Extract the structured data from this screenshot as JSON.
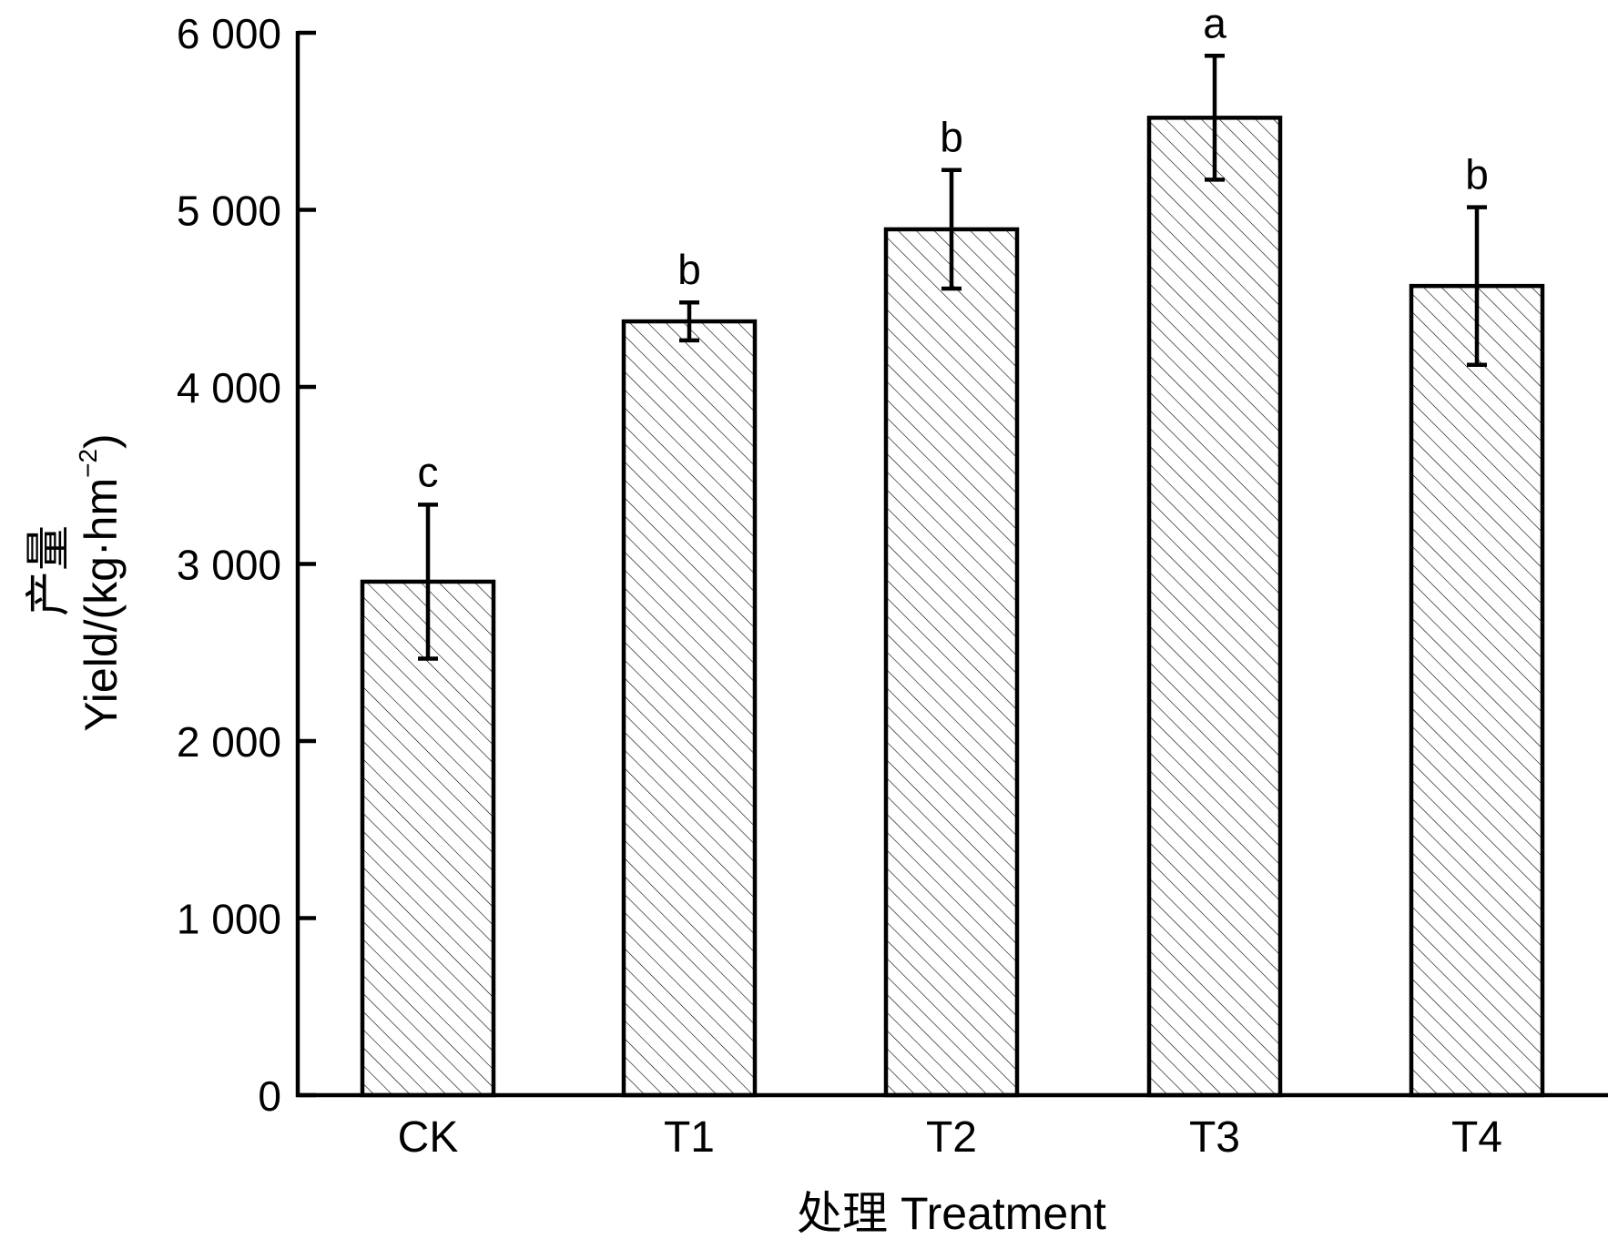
{
  "chart_data": {
    "type": "bar",
    "title": "",
    "xlabel": "处理 Treatment",
    "ylabel": "产量 Yield/(kg·hm⁻²)",
    "ylabel_parts": {
      "cn": "产量",
      "main": "Yield/(kg·hm",
      "sup": "−2",
      "close": ")"
    },
    "categories": [
      "CK",
      "T1",
      "T2",
      "T3",
      "T4"
    ],
    "values": [
      2900,
      4370,
      4890,
      5520,
      4570
    ],
    "errors": [
      435,
      107,
      335,
      350,
      445
    ],
    "significance_letters": [
      "c",
      "b",
      "b",
      "a",
      "b"
    ],
    "ylim": [
      0,
      6000
    ],
    "yticks": [
      0,
      1000,
      2000,
      3000,
      4000,
      5000,
      6000
    ],
    "ytick_labels": [
      "0",
      "1 000",
      "2 000",
      "3 000",
      "4 000",
      "5 000",
      "6 000"
    ],
    "grid": false,
    "bar_fill": "hatched diagonal",
    "colors": {
      "bar_edge": "#000000",
      "hatch": "#000000",
      "background": "#ffffff"
    }
  }
}
